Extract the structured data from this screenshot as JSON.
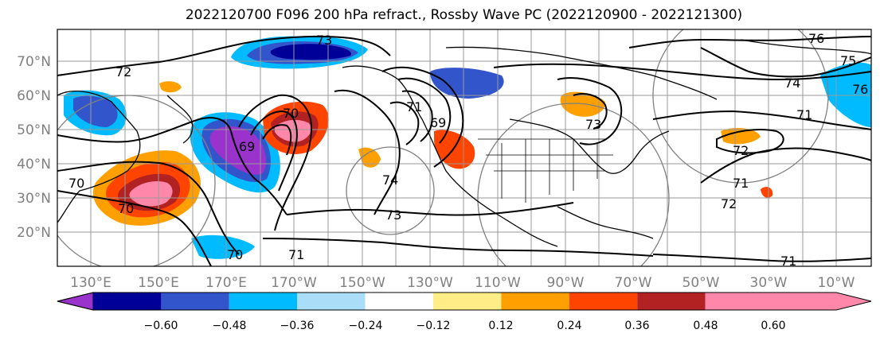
{
  "title": "2022120700 F096 200 hPa refract., Rossby Wave PC (2022120900 - 2022121300)",
  "lat_labels": [
    "70°N",
    "60°N",
    "50°N",
    "40°N",
    "30°N",
    "20°N"
  ],
  "lon_labels": [
    "130°E",
    "150°E",
    "170°E",
    "170°W",
    "150°W",
    "130°W",
    "110°W",
    "90°W",
    "70°W",
    "50°W",
    "30°W",
    "10°W"
  ],
  "colorbar": {
    "colors": [
      "#9933cc",
      "#000099",
      "#3355cc",
      "#00bbff",
      "#aaddf7",
      "#ffffff",
      "#ffee88",
      "#ffa000",
      "#ff4400",
      "#b22222",
      "#ff88aa"
    ],
    "tick_labels": [
      "−0.60",
      "−0.48",
      "−0.36",
      "−0.24",
      "−0.12",
      "0.12",
      "0.24",
      "0.36",
      "0.48",
      "0.60"
    ]
  },
  "contour_labels": [
    "73",
    "72",
    "70",
    "70",
    "71",
    "69",
    "70",
    "74",
    "73",
    "71",
    "76",
    "75",
    "74",
    "72",
    "73",
    "71",
    "71",
    "71",
    "72",
    "69",
    "76",
    "70"
  ]
}
